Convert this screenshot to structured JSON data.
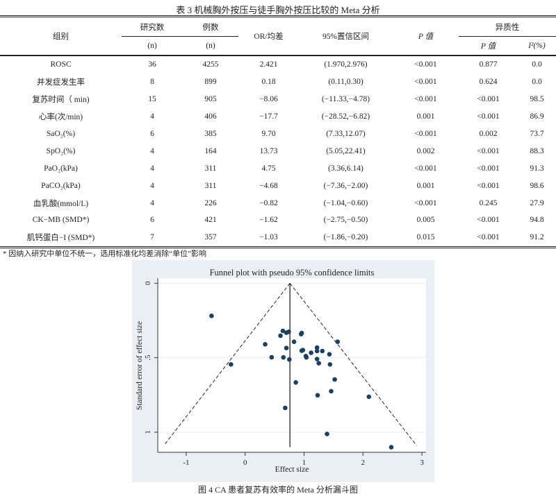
{
  "table": {
    "title": "表 3  机械胸外按压与徒手胸外按压比较的 Meta 分析",
    "headers": {
      "group": "组别",
      "studies": "研究数",
      "cases": "例数",
      "or_md": "OR/均差",
      "ci": "95%置信区间",
      "p": "P 值",
      "heterogeneity": "异质性",
      "studies_unit": "(n)",
      "cases_unit": "(n)",
      "het_p": "P 值",
      "het_i2": "I²(%)"
    },
    "rows": [
      {
        "group": "ROSC",
        "studies": "36",
        "cases": "4255",
        "or_md": "2.421",
        "ci": "(1.970,2.976)",
        "p": "<0.001",
        "het_p": "0.877",
        "i2": "0.0"
      },
      {
        "group": "并发症发生率",
        "studies": "8",
        "cases": "899",
        "or_md": "0.18",
        "ci": "(0.11,0.30)",
        "p": "<0.001",
        "het_p": "0.624",
        "i2": "0.0"
      },
      {
        "group": "复苏时间（ min)",
        "studies": "15",
        "cases": "905",
        "or_md": "−8.06",
        "ci": "(−11.33,−4.78)",
        "p": "<0.001",
        "het_p": "<0.001",
        "i2": "98.5"
      },
      {
        "group": "心率(次/min)",
        "studies": "4",
        "cases": "406",
        "or_md": "−17.7",
        "ci": "(−28.52,−6.82)",
        "p": "0.001",
        "het_p": "<0.001",
        "i2": "86.9"
      },
      {
        "group": "SaO₂(%)",
        "studies": "6",
        "cases": "385",
        "or_md": "9.70",
        "ci": "(7.33,12.07)",
        "p": "<0.001",
        "het_p": "0.002",
        "i2": "73.7"
      },
      {
        "group": "SpO₂(%)",
        "studies": "4",
        "cases": "164",
        "or_md": "13.73",
        "ci": "(5.05,22.41)",
        "p": "0.002",
        "het_p": "<0.001",
        "i2": "88.3"
      },
      {
        "group": "PaO₂(kPa)",
        "studies": "4",
        "cases": "311",
        "or_md": "4.75",
        "ci": "(3.36,6.14)",
        "p": "<0.001",
        "het_p": "<0.001",
        "i2": "91.3"
      },
      {
        "group": "PaCO₂(kPa)",
        "studies": "4",
        "cases": "311",
        "or_md": "−4.68",
        "ci": "(−7.36,−2.00)",
        "p": "0.001",
        "het_p": "<0.001",
        "i2": "98.6"
      },
      {
        "group": "血乳酸(mmol/L)",
        "studies": "4",
        "cases": "226",
        "or_md": "−0.82",
        "ci": "(−1.04,−0.60)",
        "p": "<0.001",
        "het_p": "0.245",
        "i2": "27.9"
      },
      {
        "group": "CK−MB (SMD*)",
        "studies": "6",
        "cases": "421",
        "or_md": "−1.62",
        "ci": "(−2.75,−0.50)",
        "p": "0.005",
        "het_p": "<0.001",
        "i2": "94.8"
      },
      {
        "group": "肌钙蛋白−I (SMD*)",
        "studies": "7",
        "cases": "357",
        "or_md": "−1.03",
        "ci": "(−1.86,−0.20)",
        "p": "0.015",
        "het_p": "<0.001",
        "i2": "91.2"
      }
    ],
    "footnote": "* 因纳入研究中单位不统一，选用标准化均差消除“单位”影响"
  },
  "figure": {
    "caption": "图 4 CA 患者复苏有效率的 Meta 分析漏斗图"
  },
  "chart_data": {
    "type": "scatter",
    "title": "Funnel plot with pseudo 95% confidence limits",
    "xlabel": "Effect size",
    "ylabel": "Standard error of effect size",
    "xlim": [
      -1.5,
      3.05
    ],
    "ylim": [
      1.14,
      -0.03
    ],
    "y_reversed": true,
    "x_ticks": [
      {
        "v": -1,
        "label": "-1"
      },
      {
        "v": 0,
        "label": "0"
      },
      {
        "v": 1,
        "label": "1"
      },
      {
        "v": 2,
        "label": "2"
      },
      {
        "v": 3,
        "label": "3"
      }
    ],
    "y_ticks": [
      {
        "v": 0,
        "label": "0"
      },
      {
        "v": 0.5,
        "label": ".5"
      },
      {
        "v": 1,
        "label": "1"
      }
    ],
    "grid": "horizontal",
    "pooled_effect": 0.76,
    "funnel_limits": {
      "left_bottom": [
        -1.38,
        1.09
      ],
      "right_bottom": [
        2.91,
        1.09
      ],
      "apex": [
        0.76,
        0
      ]
    },
    "point_color": "#1d3f60",
    "points": [
      [
        -0.57,
        0.219
      ],
      [
        -0.24,
        0.545
      ],
      [
        0.34,
        0.41
      ],
      [
        0.45,
        0.497
      ],
      [
        0.6,
        0.352
      ],
      [
        0.64,
        0.32
      ],
      [
        0.65,
        0.498
      ],
      [
        0.7,
        0.435
      ],
      [
        0.7,
        0.332
      ],
      [
        0.74,
        0.326
      ],
      [
        0.75,
        0.512
      ],
      [
        0.68,
        0.837
      ],
      [
        0.83,
        0.393
      ],
      [
        0.86,
        0.666
      ],
      [
        0.95,
        0.342
      ],
      [
        0.96,
        0.334
      ],
      [
        0.96,
        0.453
      ],
      [
        0.98,
        0.449
      ],
      [
        1.03,
        0.489
      ],
      [
        1.04,
        0.498
      ],
      [
        1.12,
        0.467
      ],
      [
        1.22,
        0.432
      ],
      [
        1.22,
        0.455
      ],
      [
        1.22,
        0.509
      ],
      [
        1.25,
        0.537
      ],
      [
        1.23,
        0.752
      ],
      [
        1.31,
        0.455
      ],
      [
        1.43,
        0.477
      ],
      [
        1.44,
        0.545
      ],
      [
        1.52,
        0.646
      ],
      [
        1.46,
        0.725
      ],
      [
        1.57,
        0.393
      ],
      [
        1.39,
        1.012
      ],
      [
        2.1,
        0.762
      ],
      [
        2.48,
        1.101
      ]
    ]
  }
}
